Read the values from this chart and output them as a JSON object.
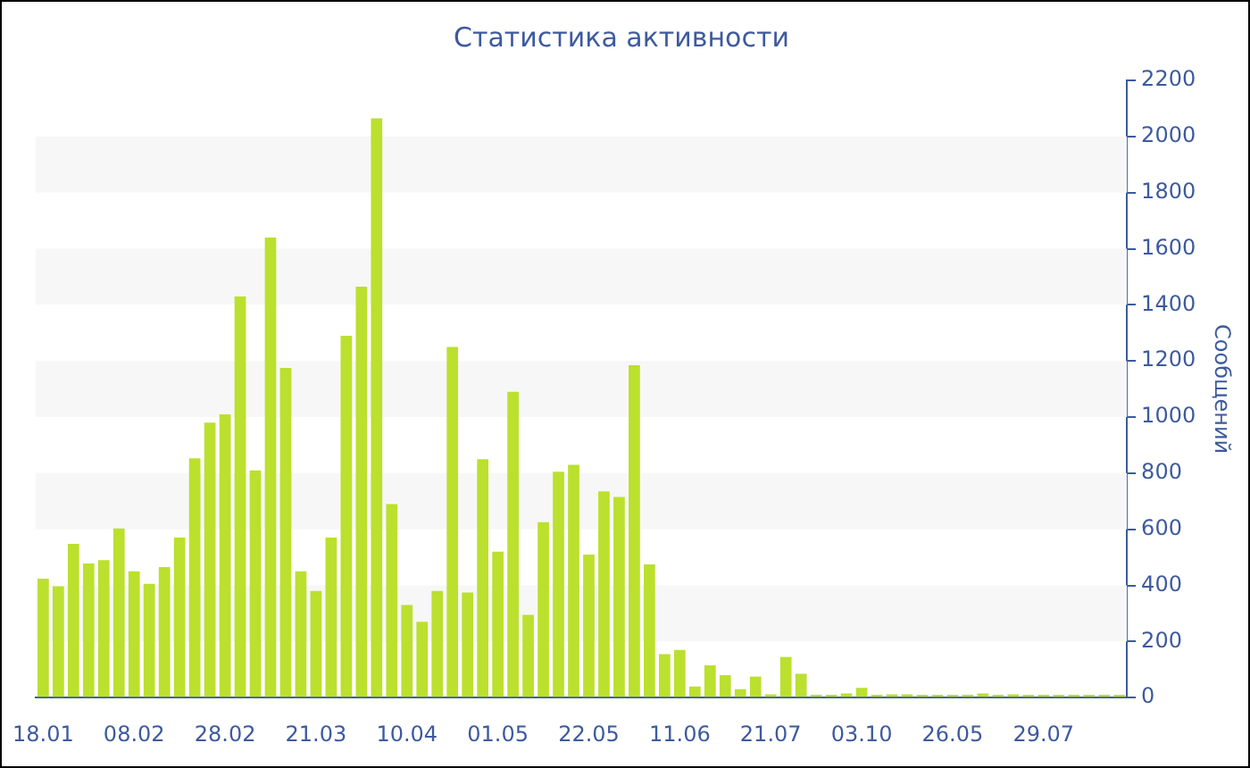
{
  "chart_data": {
    "type": "bar",
    "title": "Статистика активности",
    "ylabel": "Сообщений",
    "categories": [
      "18.01",
      null,
      null,
      null,
      null,
      null,
      "08.02",
      null,
      null,
      null,
      null,
      null,
      "28.02",
      null,
      null,
      null,
      null,
      null,
      "21.03",
      null,
      null,
      null,
      null,
      null,
      "10.04",
      null,
      null,
      null,
      null,
      null,
      "01.05",
      null,
      null,
      null,
      null,
      null,
      "22.05",
      null,
      null,
      null,
      null,
      null,
      "11.06",
      null,
      null,
      null,
      null,
      null,
      "21.07",
      null,
      null,
      null,
      null,
      null,
      "03.10",
      null,
      null,
      null,
      null,
      null,
      "26.05",
      null,
      null,
      null,
      null,
      null,
      "29.07",
      null,
      null,
      null,
      null,
      null
    ],
    "values": [
      424,
      397,
      548,
      478,
      490,
      603,
      450,
      406,
      465,
      570,
      853,
      980,
      1010,
      1430,
      810,
      1640,
      1175,
      450,
      380,
      570,
      1290,
      1465,
      2065,
      690,
      330,
      270,
      380,
      1250,
      375,
      850,
      520,
      1090,
      295,
      625,
      805,
      830,
      510,
      735,
      715,
      1185,
      475,
      155,
      170,
      40,
      115,
      80,
      30,
      75,
      12,
      145,
      85,
      10,
      10,
      15,
      35,
      10,
      12,
      12,
      10,
      10,
      10,
      10,
      15,
      10,
      12,
      10,
      10,
      10,
      10,
      10,
      10,
      10
    ],
    "color": "#bbe02e",
    "ylim": [
      0,
      2200
    ],
    "yticks": [
      0,
      200,
      400,
      600,
      800,
      1000,
      1200,
      1400,
      1600,
      1800,
      2000,
      2200
    ],
    "bands": [
      {
        "axis": "y",
        "from": 200,
        "to": 400,
        "color": "#f7f7f7"
      },
      {
        "axis": "y",
        "from": 600,
        "to": 800,
        "color": "#f7f7f7"
      },
      {
        "axis": "y",
        "from": 1000,
        "to": 1200,
        "color": "#f7f7f7"
      },
      {
        "axis": "y",
        "from": 1400,
        "to": 1600,
        "color": "#f7f7f7"
      },
      {
        "axis": "y",
        "from": 1800,
        "to": 2000,
        "color": "#f7f7f7"
      }
    ],
    "legend": false
  }
}
